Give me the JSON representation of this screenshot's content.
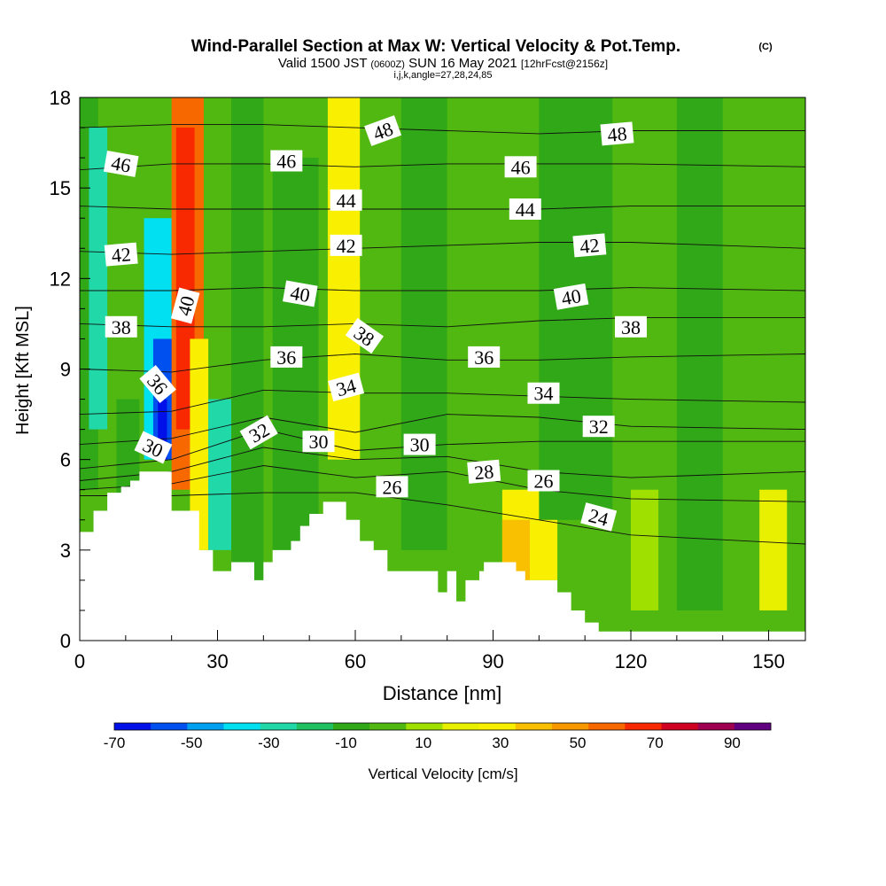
{
  "chart_data": {
    "type": "heatmap",
    "title": "Wind-Parallel Section at Max W: Vertical Velocity & Pot.Temp.",
    "title_mark": "(C)",
    "subtitle_valid": "Valid 1500 JST",
    "subtitle_utc": "(0600Z)",
    "subtitle_date": "SUN 16 May 2021",
    "subtitle_fcst": "[12hrFcst@2156z]",
    "subtitle_params": "i,j,k,angle=27,28,24,85",
    "xlabel": "Distance [nm]",
    "ylabel": "Height [Kft MSL]",
    "xlim": [
      0,
      158
    ],
    "ylim": [
      0,
      18
    ],
    "xticks": [
      0,
      30,
      60,
      90,
      120,
      150
    ],
    "yticks": [
      0,
      3,
      6,
      9,
      12,
      15,
      18
    ],
    "grid": false,
    "colorbar": {
      "label": "Vertical Velocity [cm/s]",
      "tick_labels": [
        "-70",
        "-50",
        "-30",
        "-10",
        "10",
        "30",
        "50",
        "70",
        "90"
      ],
      "min": -70,
      "max": 100,
      "colors": [
        "#0010e8",
        "#0050f0",
        "#00a0f0",
        "#00e0f0",
        "#20d8a8",
        "#20c060",
        "#30a818",
        "#50b810",
        "#a0e000",
        "#e8f000",
        "#f8f000",
        "#f8c000",
        "#f89800",
        "#f86800",
        "#f82800",
        "#d00020",
        "#a00050",
        "#600080"
      ]
    },
    "velocity_columns": [
      {
        "x": [
          0,
          4
        ],
        "z": [
          5,
          18
        ],
        "w": -5
      },
      {
        "x": [
          2,
          6
        ],
        "z": [
          7,
          17
        ],
        "w": -25
      },
      {
        "x": [
          8,
          13
        ],
        "z": [
          3,
          8
        ],
        "w": -10
      },
      {
        "x": [
          14,
          20
        ],
        "z": [
          6,
          14
        ],
        "w": -35
      },
      {
        "x": [
          16,
          21
        ],
        "z": [
          6,
          10
        ],
        "w": -55
      },
      {
        "x": [
          17,
          19
        ],
        "z": [
          6,
          8
        ],
        "w": -65
      },
      {
        "x": [
          20,
          27
        ],
        "z": [
          5,
          18
        ],
        "w": 55
      },
      {
        "x": [
          21,
          25
        ],
        "z": [
          7,
          17
        ],
        "w": 70
      },
      {
        "x": [
          24,
          28
        ],
        "z": [
          3,
          10
        ],
        "w": 25
      },
      {
        "x": [
          28,
          33
        ],
        "z": [
          3,
          8
        ],
        "w": -25
      },
      {
        "x": [
          33,
          40
        ],
        "z": [
          2,
          18
        ],
        "w": -12
      },
      {
        "x": [
          42,
          52
        ],
        "z": [
          3,
          16
        ],
        "w": -8
      },
      {
        "x": [
          54,
          61
        ],
        "z": [
          6,
          18
        ],
        "w": 25
      },
      {
        "x": [
          56,
          61
        ],
        "z": [
          6,
          12
        ],
        "w": 32
      },
      {
        "x": [
          62,
          70
        ],
        "z": [
          4,
          18
        ],
        "w": 5
      },
      {
        "x": [
          70,
          80
        ],
        "z": [
          3,
          18
        ],
        "w": -12
      },
      {
        "x": [
          80,
          90
        ],
        "z": [
          2,
          16
        ],
        "w": 4
      },
      {
        "x": [
          92,
          104
        ],
        "z": [
          2,
          5
        ],
        "w": 25
      },
      {
        "x": [
          92,
          98
        ],
        "z": [
          2,
          4
        ],
        "w": 38
      },
      {
        "x": [
          100,
          116
        ],
        "z": [
          4,
          18
        ],
        "w": -8
      },
      {
        "x": [
          120,
          126
        ],
        "z": [
          1,
          5
        ],
        "w": 14
      },
      {
        "x": [
          130,
          140
        ],
        "z": [
          1,
          18
        ],
        "w": -12
      },
      {
        "x": [
          148,
          154
        ],
        "z": [
          1,
          5
        ],
        "w": 18
      }
    ],
    "theta_contours": [
      {
        "level": 24,
        "z": [
          4.8,
          4.8,
          4.9,
          4.9,
          4.5,
          4.0,
          3.5,
          3.2
        ]
      },
      {
        "level": 26,
        "z": [
          5.0,
          5.2,
          5.8,
          5.4,
          5.6,
          5.0,
          4.7,
          4.6
        ]
      },
      {
        "level": 28,
        "z": [
          5.3,
          5.6,
          6.4,
          6.0,
          6.1,
          5.6,
          5.4,
          5.6
        ]
      },
      {
        "level": 30,
        "z": [
          5.7,
          6.0,
          7.0,
          6.3,
          6.5,
          6.6,
          6.6,
          6.6
        ]
      },
      {
        "level": 32,
        "z": [
          6.5,
          6.7,
          7.4,
          6.9,
          7.5,
          7.4,
          7.1,
          7.0
        ]
      },
      {
        "level": 34,
        "z": [
          7.5,
          7.6,
          8.3,
          8.2,
          8.2,
          8.1,
          8.0,
          7.9
        ]
      },
      {
        "level": 36,
        "z": [
          9.0,
          8.9,
          9.3,
          9.5,
          9.3,
          9.3,
          9.4,
          9.5
        ]
      },
      {
        "level": 38,
        "z": [
          10.5,
          10.4,
          10.4,
          10.5,
          10.4,
          10.6,
          10.7,
          10.7
        ]
      },
      {
        "level": 40,
        "z": [
          11.6,
          11.6,
          11.7,
          11.6,
          11.6,
          11.6,
          11.7,
          11.6
        ]
      },
      {
        "level": 42,
        "z": [
          12.9,
          12.8,
          12.9,
          13.0,
          13.1,
          13.2,
          13.2,
          13.0
        ]
      },
      {
        "level": 44,
        "z": [
          14.4,
          14.3,
          14.3,
          14.3,
          14.3,
          14.3,
          14.4,
          14.4
        ]
      },
      {
        "level": 46,
        "z": [
          15.6,
          15.8,
          15.8,
          15.7,
          15.8,
          15.8,
          15.8,
          15.7
        ]
      },
      {
        "level": 48,
        "z": [
          17.0,
          17.1,
          17.1,
          17.0,
          16.9,
          16.8,
          16.9,
          16.9
        ]
      }
    ],
    "contour_x": [
      0,
      20,
      40,
      60,
      80,
      100,
      120,
      158
    ],
    "contour_labels": [
      {
        "text": "46",
        "x": 9,
        "z": 15.8,
        "angle": 10
      },
      {
        "text": "46",
        "x": 45,
        "z": 15.9,
        "angle": 0
      },
      {
        "text": "46",
        "x": 96,
        "z": 15.7,
        "angle": 0
      },
      {
        "text": "48",
        "x": 66,
        "z": 16.9,
        "angle": -20
      },
      {
        "text": "48",
        "x": 117,
        "z": 16.8,
        "angle": -5
      },
      {
        "text": "44",
        "x": 58,
        "z": 14.6,
        "angle": 0
      },
      {
        "text": "44",
        "x": 97,
        "z": 14.3,
        "angle": 0
      },
      {
        "text": "42",
        "x": 9,
        "z": 12.8,
        "angle": -5
      },
      {
        "text": "42",
        "x": 58,
        "z": 13.1,
        "angle": 0
      },
      {
        "text": "42",
        "x": 111,
        "z": 13.1,
        "angle": -5
      },
      {
        "text": "40",
        "x": 23,
        "z": 11.1,
        "angle": -75
      },
      {
        "text": "40",
        "x": 48,
        "z": 11.5,
        "angle": 10
      },
      {
        "text": "40",
        "x": 107,
        "z": 11.4,
        "angle": -10
      },
      {
        "text": "38",
        "x": 9,
        "z": 10.4,
        "angle": 0
      },
      {
        "text": "38",
        "x": 62,
        "z": 10.1,
        "angle": 35
      },
      {
        "text": "38",
        "x": 120,
        "z": 10.4,
        "angle": 0
      },
      {
        "text": "36",
        "x": 45,
        "z": 9.4,
        "angle": 0
      },
      {
        "text": "36",
        "x": 88,
        "z": 9.4,
        "angle": 0
      },
      {
        "text": "36",
        "x": 17,
        "z": 8.5,
        "angle": 50
      },
      {
        "text": "34",
        "x": 58,
        "z": 8.4,
        "angle": -15
      },
      {
        "text": "34",
        "x": 101,
        "z": 8.2,
        "angle": 0
      },
      {
        "text": "32",
        "x": 39,
        "z": 6.9,
        "angle": -30
      },
      {
        "text": "32",
        "x": 113,
        "z": 7.1,
        "angle": 0
      },
      {
        "text": "30",
        "x": 16,
        "z": 6.4,
        "angle": 25
      },
      {
        "text": "30",
        "x": 52,
        "z": 6.6,
        "angle": 0
      },
      {
        "text": "30",
        "x": 74,
        "z": 6.5,
        "angle": 0
      },
      {
        "text": "28",
        "x": 88,
        "z": 5.6,
        "angle": -5
      },
      {
        "text": "26",
        "x": 68,
        "z": 5.1,
        "angle": 0
      },
      {
        "text": "26",
        "x": 101,
        "z": 5.3,
        "angle": 0
      },
      {
        "text": "24",
        "x": 113,
        "z": 4.1,
        "angle": 15
      }
    ],
    "terrain": [
      {
        "x": 0,
        "z": 3.6
      },
      {
        "x": 3,
        "z": 4.3
      },
      {
        "x": 6,
        "z": 4.9
      },
      {
        "x": 9,
        "z": 5.1
      },
      {
        "x": 11,
        "z": 5.3
      },
      {
        "x": 13,
        "z": 5.6
      },
      {
        "x": 20,
        "z": 4.3
      },
      {
        "x": 26,
        "z": 3.0
      },
      {
        "x": 29,
        "z": 2.3
      },
      {
        "x": 33,
        "z": 2.6
      },
      {
        "x": 38,
        "z": 2.0
      },
      {
        "x": 40,
        "z": 2.6
      },
      {
        "x": 42,
        "z": 3.0
      },
      {
        "x": 46,
        "z": 3.3
      },
      {
        "x": 48,
        "z": 3.8
      },
      {
        "x": 50,
        "z": 4.2
      },
      {
        "x": 53,
        "z": 4.6
      },
      {
        "x": 58,
        "z": 4.0
      },
      {
        "x": 61,
        "z": 3.3
      },
      {
        "x": 64,
        "z": 3.0
      },
      {
        "x": 67,
        "z": 2.3
      },
      {
        "x": 71,
        "z": 2.3
      },
      {
        "x": 78,
        "z": 1.6
      },
      {
        "x": 80,
        "z": 2.3
      },
      {
        "x": 82,
        "z": 1.3
      },
      {
        "x": 84,
        "z": 2.0
      },
      {
        "x": 87,
        "z": 2.3
      },
      {
        "x": 88,
        "z": 2.6
      },
      {
        "x": 92,
        "z": 2.6
      },
      {
        "x": 95,
        "z": 2.3
      },
      {
        "x": 97,
        "z": 2.0
      },
      {
        "x": 104,
        "z": 1.6
      },
      {
        "x": 107,
        "z": 1.0
      },
      {
        "x": 110,
        "z": 0.6
      },
      {
        "x": 113,
        "z": 0.3
      },
      {
        "x": 158,
        "z": 0.3
      }
    ]
  }
}
